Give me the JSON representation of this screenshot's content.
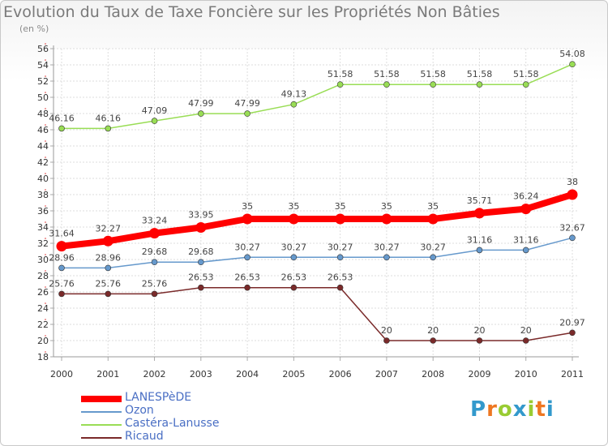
{
  "title": "Evolution du Taux de Taxe Foncière sur les Propriétés Non Bâties",
  "subtitle": "(en %)",
  "logo": "Proxiti",
  "chart_data": {
    "type": "line",
    "title": "Evolution du Taux de Taxe Foncière sur les Propriétés Non Bâties",
    "ylabel": "(en %)",
    "xlabel": "",
    "categories": [
      "2000",
      "2001",
      "2002",
      "2003",
      "2004",
      "2005",
      "2006",
      "2007",
      "2008",
      "2009",
      "2010",
      "2011"
    ],
    "ylim": [
      18,
      56
    ],
    "yticks": [
      18,
      20,
      22,
      24,
      26,
      28,
      30,
      32,
      34,
      36,
      38,
      40,
      42,
      44,
      46,
      48,
      50,
      52,
      54,
      56
    ],
    "grid": true,
    "legend_position": "bottom-left",
    "series": [
      {
        "name": "LANESPèDE",
        "color": "#ff0000",
        "values": [
          31.64,
          32.27,
          33.24,
          33.95,
          35,
          35,
          35,
          35,
          35,
          35.71,
          36.24,
          38
        ],
        "labels": [
          "31.64",
          "32.27",
          "33.24",
          "33.95",
          "35",
          "35",
          "35",
          "35",
          "35",
          "35.71",
          "36.24",
          "38"
        ]
      },
      {
        "name": "Ozon",
        "color": "#6699cc",
        "values": [
          28.96,
          28.96,
          29.68,
          29.68,
          30.27,
          30.27,
          30.27,
          30.27,
          30.27,
          31.16,
          31.16,
          32.67
        ],
        "labels": [
          "28.96",
          "28.96",
          "29.68",
          "29.68",
          "30.27",
          "30.27",
          "30.27",
          "30.27",
          "30.27",
          "31.16",
          "31.16",
          "32.67"
        ]
      },
      {
        "name": "Castéra-Lanusse",
        "color": "#99dd55",
        "values": [
          46.16,
          46.16,
          47.09,
          47.99,
          47.99,
          49.13,
          51.58,
          51.58,
          51.58,
          51.58,
          51.58,
          54.08
        ],
        "labels": [
          "46.16",
          "46.16",
          "47.09",
          "47.99",
          "47.99",
          "49.13",
          "51.58",
          "51.58",
          "51.58",
          "51.58",
          "51.58",
          "54.08"
        ]
      },
      {
        "name": "Ricaud",
        "color": "#7a2a2a",
        "values": [
          25.76,
          25.76,
          25.76,
          26.53,
          26.53,
          26.53,
          26.53,
          20,
          20,
          20,
          20,
          20.97
        ],
        "labels": [
          "25.76",
          "25.76",
          "25.76",
          "26.53",
          "26.53",
          "26.53",
          "26.53",
          "20",
          "20",
          "20",
          "20",
          "20.97"
        ]
      }
    ]
  }
}
